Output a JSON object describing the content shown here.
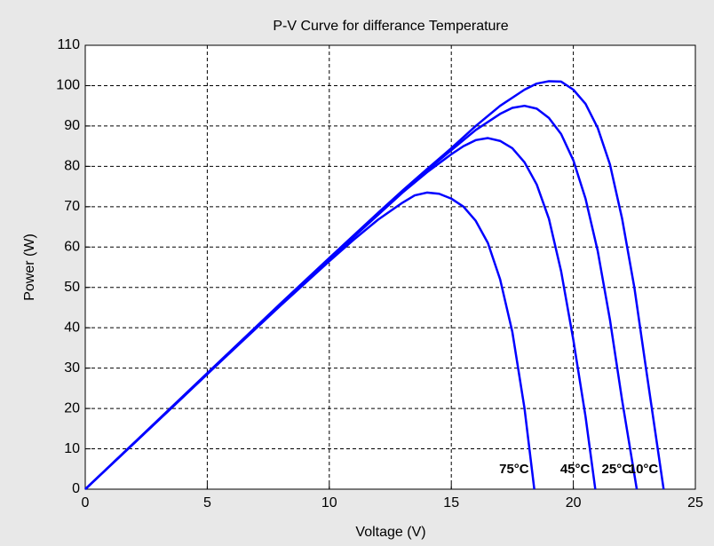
{
  "chart_data": {
    "type": "line",
    "title": "P-V Curve for differance Temperature",
    "x_label": "Voltage (V)",
    "y_label": "Power (W)",
    "xlim": [
      0,
      25
    ],
    "xticks": [
      0,
      5,
      10,
      15,
      20,
      25
    ],
    "ylim": [
      0,
      110
    ],
    "yticks": [
      0,
      10,
      20,
      30,
      40,
      50,
      60,
      70,
      80,
      90,
      100,
      110
    ],
    "grid": true,
    "series": [
      {
        "name": "75°C",
        "color": "#0000ff",
        "x": [
          0,
          2,
          4,
          6,
          8,
          10,
          11,
          12,
          13,
          13.5,
          14,
          14.5,
          15,
          15.5,
          16,
          16.5,
          17,
          17.5,
          18,
          18.4
        ],
        "values": [
          0,
          11.4,
          22.8,
          34.2,
          45.5,
          56.5,
          61.8,
          66.8,
          71,
          72.8,
          73.5,
          73.2,
          72,
          70,
          66.5,
          61,
          52,
          39,
          20,
          0
        ]
      },
      {
        "name": "45°C",
        "color": "#0000ff",
        "x": [
          0,
          2,
          4,
          6,
          8,
          10,
          12,
          13,
          14,
          15,
          15.5,
          16,
          16.5,
          17,
          17.5,
          18,
          18.5,
          19,
          19.5,
          20,
          20.5,
          20.9
        ],
        "values": [
          0,
          11.4,
          22.8,
          34.3,
          45.7,
          57,
          68,
          73.5,
          78.5,
          83,
          85,
          86.5,
          87,
          86.3,
          84.5,
          81,
          75.5,
          67,
          54,
          37,
          18,
          0
        ]
      },
      {
        "name": "25°C",
        "color": "#0000ff",
        "x": [
          0,
          2,
          4,
          6,
          8,
          10,
          12,
          13,
          14,
          15,
          16,
          17,
          17.5,
          18,
          18.5,
          19,
          19.5,
          20,
          20.5,
          21,
          21.5,
          22,
          22.6
        ],
        "values": [
          0,
          11.4,
          22.8,
          34.3,
          45.7,
          57,
          68.2,
          73.7,
          79,
          84,
          89,
          93,
          94.5,
          95,
          94.3,
          92,
          88,
          81.5,
          72,
          59,
          42,
          22,
          0
        ]
      },
      {
        "name": "10°C",
        "color": "#0000ff",
        "x": [
          0,
          2,
          4,
          6,
          8,
          10,
          12,
          13,
          14,
          15,
          16,
          17,
          18,
          18.5,
          19,
          19.5,
          20,
          20.5,
          21,
          21.5,
          22,
          22.5,
          23,
          23.7
        ],
        "values": [
          0,
          11.5,
          23,
          34.5,
          46,
          57.3,
          68.5,
          74,
          79.3,
          84.5,
          90,
          95,
          99,
          100.5,
          101.1,
          101,
          99,
          95.5,
          89.5,
          80.5,
          67,
          50,
          29,
          0
        ]
      }
    ]
  }
}
